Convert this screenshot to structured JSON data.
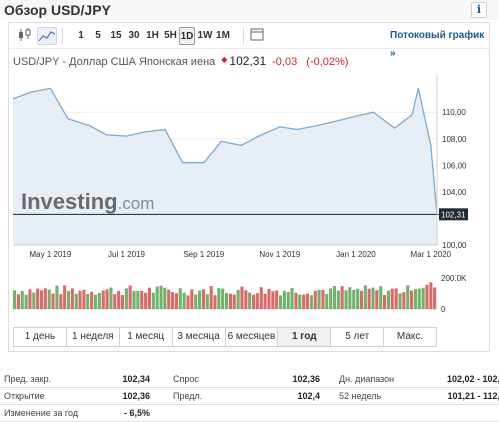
{
  "header": {
    "title": "Обзор USD/JPY",
    "info_label": "i"
  },
  "toolbar": {
    "intervals": [
      "1",
      "5",
      "15",
      "30",
      "1H",
      "5H",
      "1D",
      "1W",
      "1M"
    ],
    "selected_interval": "1D",
    "link_label": "Потоковый график »"
  },
  "quote": {
    "name": "USD/JPY - Доллар США Японская иена",
    "price": "102,31",
    "change": "-0,03",
    "change_pct": "(-0,02%)"
  },
  "chart_data": {
    "type": "area",
    "x": [
      "2019-04-01",
      "2019-04-15",
      "2019-05-01",
      "2019-05-15",
      "2019-06-01",
      "2019-06-15",
      "2019-07-01",
      "2019-07-15",
      "2019-08-01",
      "2019-08-15",
      "2019-09-01",
      "2019-09-15",
      "2019-10-01",
      "2019-10-15",
      "2019-11-01",
      "2019-11-15",
      "2019-12-01",
      "2019-12-15",
      "2020-01-01",
      "2020-01-15",
      "2020-02-01",
      "2020-02-15",
      "2020-02-20",
      "2020-03-01",
      "2020-03-06"
    ],
    "values": [
      111.0,
      111.5,
      111.8,
      109.5,
      109.0,
      108.3,
      108.2,
      108.5,
      108.7,
      106.2,
      106.2,
      107.8,
      107.5,
      108.2,
      108.9,
      108.7,
      109.0,
      109.3,
      109.7,
      110.0,
      108.8,
      109.8,
      111.8,
      107.5,
      102.31
    ],
    "y_ticks": [
      "110,00",
      "108,00",
      "106,00",
      "104,00",
      "100,00"
    ],
    "last_price_label": "102,31",
    "x_ticks": [
      "May 1 2019",
      "Jul 1 2019",
      "Sep 1 2019",
      "Nov 1 2019",
      "Jan 1 2020",
      "Mar 1 2020"
    ],
    "ylim": [
      100,
      112.8
    ],
    "volume_label": "200.0K",
    "volume_zero_label": "0",
    "volume_max": 240000,
    "watermark": "Investing.com",
    "colors": {
      "line": "#7eaad3",
      "fill": "#e6eef6",
      "vol_up": "#6fb36a",
      "vol_down": "#d96a6a"
    }
  },
  "ranges": {
    "items": [
      "1 день",
      "1 неделя",
      "1 месяц",
      "3 месяца",
      "6 месяцев",
      "1 год",
      "5 лет",
      "Макс."
    ],
    "selected": "1 год"
  },
  "stats": {
    "rows": [
      [
        {
          "label": "Пред. закр.",
          "value": "102,34"
        },
        {
          "label": "Спрос",
          "value": "102,36"
        },
        {
          "label": "Дн. диапазон",
          "value": "102,02 - 102,43"
        }
      ],
      [
        {
          "label": "Открытие",
          "value": "102,36"
        },
        {
          "label": "Предл.",
          "value": "102,4"
        },
        {
          "label": "52 недель",
          "value": "101,21 - 112,41"
        }
      ],
      [
        {
          "label": "Изменение за год",
          "value": "- 6,5%"
        }
      ]
    ]
  }
}
